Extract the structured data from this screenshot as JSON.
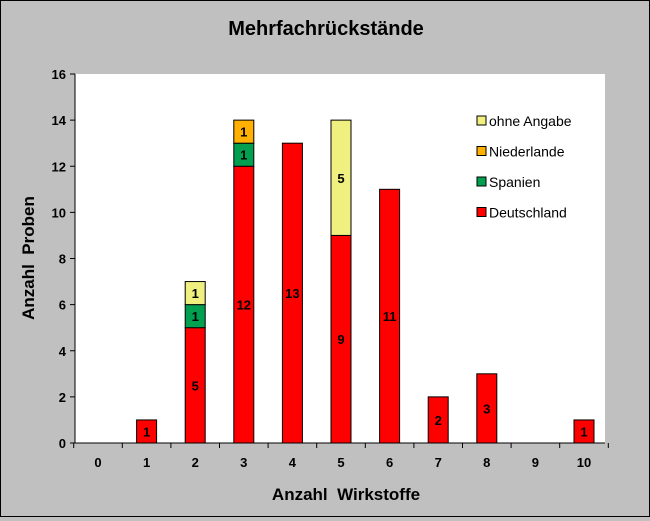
{
  "chart_data": {
    "type": "bar",
    "stacked": true,
    "title": "Mehrfachrückstände",
    "xlabel": "Anzahl  Wirkstoffe",
    "ylabel": "Anzahl  Proben",
    "ylim": [
      0,
      16
    ],
    "yticks": [
      "0",
      "2",
      "4",
      "6",
      "8",
      "10",
      "12",
      "14",
      "16"
    ],
    "categories": [
      "0",
      "1",
      "2",
      "3",
      "4",
      "5",
      "6",
      "7",
      "8",
      "9",
      "10"
    ],
    "grid": false,
    "legend_position": "top-right",
    "plot_background": "#ffffff",
    "figure_background": "#c0c0c0",
    "series": [
      {
        "name": "Deutschland",
        "color": "#ff0000",
        "values": [
          0,
          1,
          5,
          12,
          13,
          9,
          11,
          2,
          3,
          0,
          1
        ]
      },
      {
        "name": "Spanien",
        "color": "#00a050",
        "values": [
          0,
          0,
          1,
          1,
          0,
          0,
          0,
          0,
          0,
          0,
          0
        ]
      },
      {
        "name": "Niederlande",
        "color": "#ffb000",
        "values": [
          0,
          0,
          0,
          1,
          0,
          0,
          0,
          0,
          0,
          0,
          0
        ]
      },
      {
        "name": "ohne Angabe",
        "color": "#f0f080",
        "values": [
          0,
          0,
          1,
          0,
          0,
          5,
          0,
          0,
          0,
          0,
          0
        ]
      }
    ],
    "legend_order": [
      "ohne Angabe",
      "Niederlande",
      "Spanien",
      "Deutschland"
    ]
  }
}
